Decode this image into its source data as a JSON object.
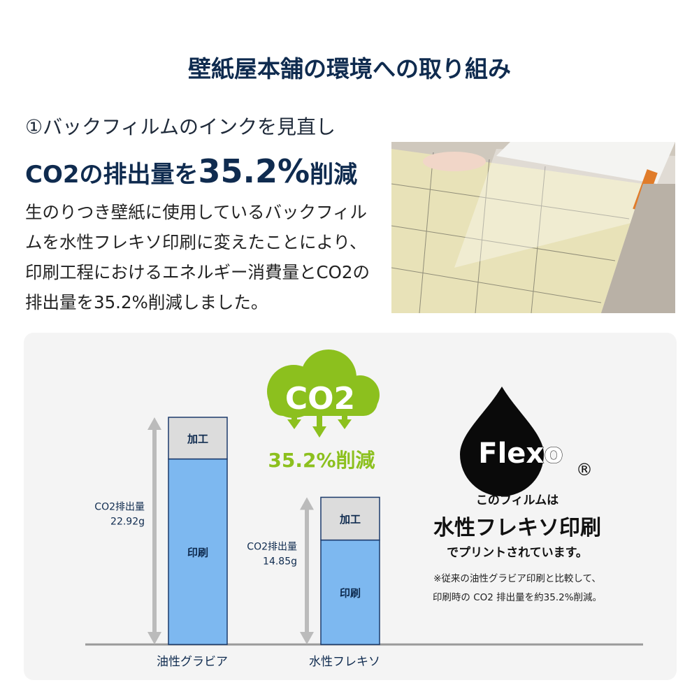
{
  "title": "壁紙屋本舗の環境への取り組み",
  "section": {
    "subtitle": "①バックフィルムのインクを見直し",
    "headline_pre": "CO2の排出量を",
    "headline_value": "35.2%",
    "headline_post": "削減",
    "body": "生のりつき壁紙に使用しているバックフィルムを水性フレキソ印刷に変えたことにより、印刷工程におけるエネルギー消費量とCO2の排出量を35.2%削減しました。"
  },
  "badge": {
    "cloud_text": "CO2",
    "reduction": "35.2%削減",
    "color": "#8cc01e"
  },
  "flexo": {
    "logo": "Flexo",
    "registered": "®",
    "line1": "このフィルムは",
    "line2": "水性フレキソ印刷",
    "line3": "でプリントされています。",
    "note1": "※従来の油性グラビア印刷と比較して、",
    "note2": "印刷時の CO2 排出量を約35.2%削減。"
  },
  "chart_data": {
    "type": "bar",
    "stacked": true,
    "categories": [
      "油性グラビア",
      "水性フレキソ"
    ],
    "series": [
      {
        "name": "印刷",
        "values": [
          18.7,
          10.5
        ],
        "color": "#7db8f0"
      },
      {
        "name": "加工",
        "values": [
          4.2,
          4.3
        ],
        "color": "#dcdcdc"
      }
    ],
    "totals": [
      22.92,
      14.85
    ],
    "total_labels": [
      [
        "CO2排出量",
        "22.92g"
      ],
      [
        "CO2排出量",
        "14.85g"
      ]
    ],
    "ylim": [
      0,
      22.92
    ],
    "grid": false
  }
}
